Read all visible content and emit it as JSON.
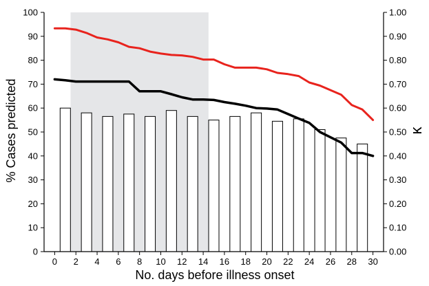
{
  "chart_data": {
    "type": "bar",
    "xlabel": "No. days before illness onset",
    "ylabel": "% Cases predicted",
    "y2label": "κ",
    "x": [
      0,
      1,
      2,
      3,
      4,
      5,
      6,
      7,
      8,
      9,
      10,
      11,
      12,
      13,
      14,
      15,
      16,
      17,
      18,
      19,
      20,
      21,
      22,
      23,
      24,
      25,
      26,
      27,
      28,
      29,
      30
    ],
    "x_ticks": [
      "0",
      "2",
      "4",
      "6",
      "8",
      "10",
      "12",
      "14",
      "16",
      "18",
      "20",
      "22",
      "24",
      "26",
      "28",
      "30"
    ],
    "xlim": [
      -1,
      31
    ],
    "ylim": [
      0,
      100
    ],
    "y_ticks": [
      "0",
      "10",
      "20",
      "30",
      "40",
      "50",
      "60",
      "70",
      "80",
      "90",
      "100"
    ],
    "y2lim": [
      0,
      1
    ],
    "y2_ticks": [
      "0.00",
      "0.10",
      "0.20",
      "0.30",
      "0.40",
      "0.50",
      "0.60",
      "0.70",
      "0.80",
      "0.90",
      "1.00"
    ],
    "shaded_region": {
      "x_start": 1.5,
      "x_end": 14.5,
      "color": "#e5e6e8"
    },
    "grid": false,
    "bars": {
      "axis": "right",
      "x": [
        1,
        3,
        5,
        7,
        9,
        11,
        13,
        15,
        17,
        19,
        21,
        23,
        25,
        27,
        29
      ],
      "values": [
        0.6,
        0.58,
        0.565,
        0.575,
        0.565,
        0.59,
        0.565,
        0.55,
        0.565,
        0.58,
        0.545,
        0.555,
        0.51,
        0.475,
        0.45
      ],
      "fill": "#ffffff",
      "stroke": "#000000"
    },
    "series": [
      {
        "axis": "left",
        "color": "#e8231d",
        "values": [
          93.3,
          93.3,
          92.8,
          91.4,
          89.5,
          88.7,
          87.5,
          85.6,
          85.0,
          83.6,
          82.8,
          82.2,
          82.0,
          81.4,
          80.3,
          80.3,
          78.3,
          76.9,
          76.9,
          76.9,
          76.2,
          74.7,
          74.2,
          73.4,
          70.7,
          69.4,
          67.5,
          65.6,
          61.3,
          59.4,
          55.0
        ]
      },
      {
        "axis": "right",
        "color": "#000000",
        "values": [
          0.72,
          0.716,
          0.711,
          0.711,
          0.711,
          0.711,
          0.711,
          0.711,
          0.67,
          0.67,
          0.67,
          0.658,
          0.645,
          0.636,
          0.636,
          0.634,
          0.625,
          0.618,
          0.61,
          0.6,
          0.598,
          0.594,
          0.575,
          0.556,
          0.538,
          0.5,
          0.478,
          0.456,
          0.412,
          0.412,
          0.4
        ]
      }
    ]
  }
}
